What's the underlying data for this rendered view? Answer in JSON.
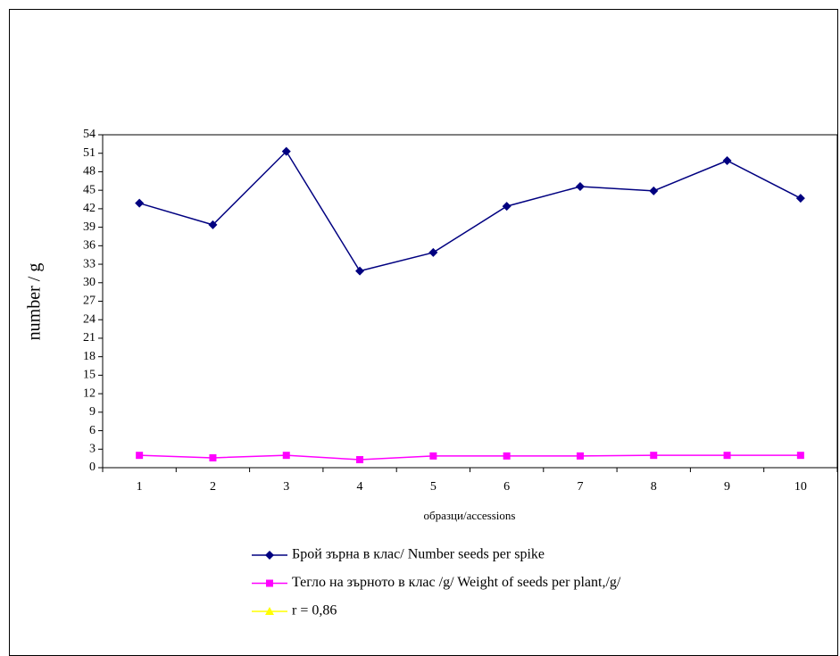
{
  "chart_data": {
    "type": "line",
    "y_label": "number / g",
    "x_label": "образци/accessions",
    "categories": [
      "1",
      "2",
      "3",
      "4",
      "5",
      "6",
      "7",
      "8",
      "9",
      "10"
    ],
    "series": [
      {
        "name": "Брой зърна в клас/ Number seeds per spike",
        "color": "#000080",
        "marker": "diamond",
        "values": [
          42.9,
          39.4,
          51.3,
          31.9,
          34.9,
          42.4,
          45.6,
          44.9,
          49.8,
          43.7
        ]
      },
      {
        "name": "Тегло на зърното в клас /g/ Weight of seeds per plant,/g/",
        "color": "#ff00ff",
        "marker": "square",
        "values": [
          2.0,
          1.6,
          2.0,
          1.3,
          1.9,
          1.9,
          1.9,
          2.0,
          2.0,
          2.0
        ]
      },
      {
        "name": "r = 0,86",
        "color": "#ffff00",
        "marker": "triangle",
        "values": [
          null,
          null,
          null,
          null,
          null,
          null,
          null,
          null,
          null,
          null
        ]
      }
    ],
    "ylim": [
      0,
      54
    ],
    "yticks": [
      0,
      3,
      6,
      9,
      12,
      15,
      18,
      21,
      24,
      27,
      30,
      33,
      36,
      39,
      42,
      45,
      48,
      51,
      54
    ],
    "grid": false
  }
}
